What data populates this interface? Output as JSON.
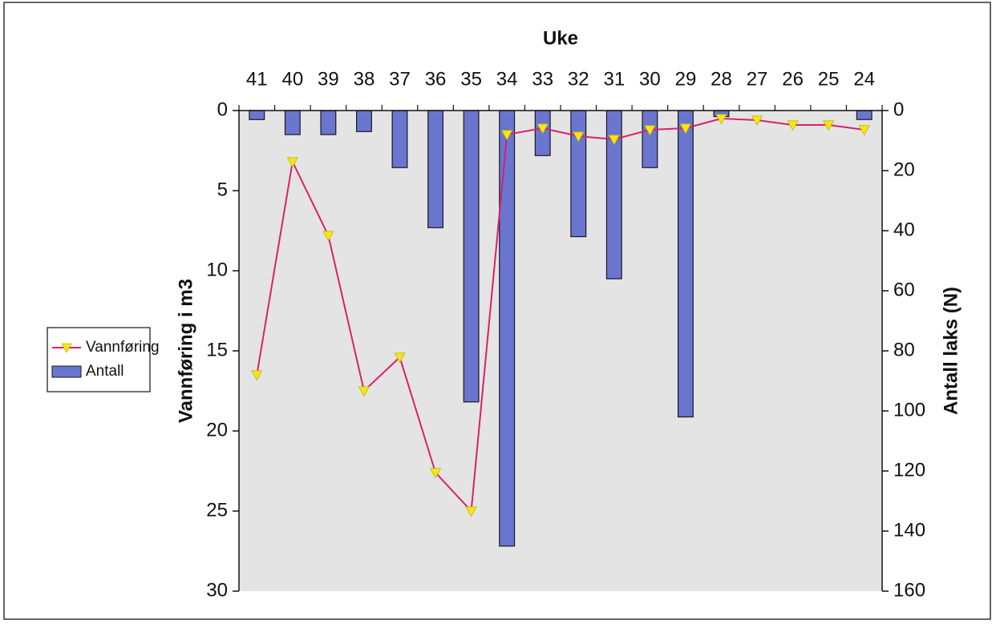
{
  "chart_data": {
    "type": "bar",
    "orientation": "rotated-180",
    "xlabel": "Uke",
    "categories": [
      "24",
      "25",
      "26",
      "27",
      "28",
      "29",
      "30",
      "31",
      "32",
      "33",
      "34",
      "35",
      "36",
      "37",
      "38",
      "39",
      "40",
      "41"
    ],
    "series": [
      {
        "name": "Antall",
        "type": "bar",
        "axis": "Antall laks (N)",
        "color": "#6a75cf",
        "values": [
          3,
          0,
          0,
          0,
          2,
          102,
          19,
          56,
          42,
          15,
          145,
          97,
          39,
          19,
          7,
          8,
          8,
          3
        ]
      },
      {
        "name": "Vannføring",
        "type": "line",
        "axis": "Vannføring i m3",
        "color": "#d9206e",
        "marker_color": "#f4e619",
        "values": [
          1.2,
          0.9,
          0.9,
          0.6,
          0.5,
          1.1,
          1.2,
          1.8,
          1.6,
          1.1,
          1.5,
          25,
          22.6,
          15.4,
          17.5,
          7.8,
          3.2,
          16.5
        ]
      }
    ],
    "axes": {
      "left": {
        "label": "Antall laks (N)",
        "ticks": [
          "0",
          "20",
          "40",
          "60",
          "80",
          "100",
          "120",
          "140",
          "160"
        ],
        "range": [
          0,
          160
        ]
      },
      "right": {
        "label": "Vannføring i m3",
        "ticks": [
          "0",
          "5",
          "10",
          "15",
          "20",
          "25",
          "30"
        ],
        "range": [
          0,
          30
        ]
      }
    },
    "legend": {
      "placement": "bottom-left",
      "entries": [
        "Antall",
        "Vannføring"
      ]
    },
    "grid": false,
    "plot_background": "#e4e4e4"
  }
}
